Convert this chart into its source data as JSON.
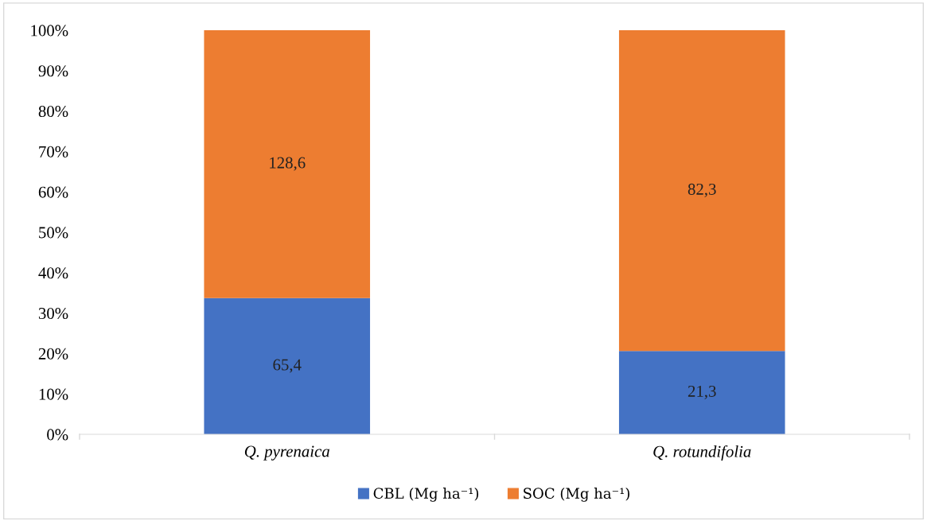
{
  "chart_data": {
    "type": "bar",
    "stacked": true,
    "categories": [
      "Q. pyrenaica",
      "Q. rotundifolia"
    ],
    "series": [
      {
        "name": "CBL (Mg ha⁻¹)",
        "color": "#4472c4",
        "values": [
          33.7,
          20.6
        ]
      },
      {
        "name": "SOC (Mg ha⁻¹)",
        "color": "#ed7d31",
        "values": [
          66.3,
          79.4
        ]
      }
    ],
    "annotations": [
      "65,4",
      "21,3",
      "128,6",
      "82,3"
    ],
    "ylim": [
      0,
      100
    ],
    "yticks": [
      {
        "value": 0,
        "label": "0%"
      },
      {
        "value": 10,
        "label": "10%"
      },
      {
        "value": 20,
        "label": "20%"
      },
      {
        "value": 30,
        "label": "30%"
      },
      {
        "value": 40,
        "label": "40%"
      },
      {
        "value": 50,
        "label": "50%"
      },
      {
        "value": 60,
        "label": "60%"
      },
      {
        "value": 70,
        "label": "70%"
      },
      {
        "value": 80,
        "label": "80%"
      },
      {
        "value": 90,
        "label": "90%"
      },
      {
        "value": 100,
        "label": "100%"
      }
    ],
    "grid": false,
    "legend": "bottom"
  }
}
